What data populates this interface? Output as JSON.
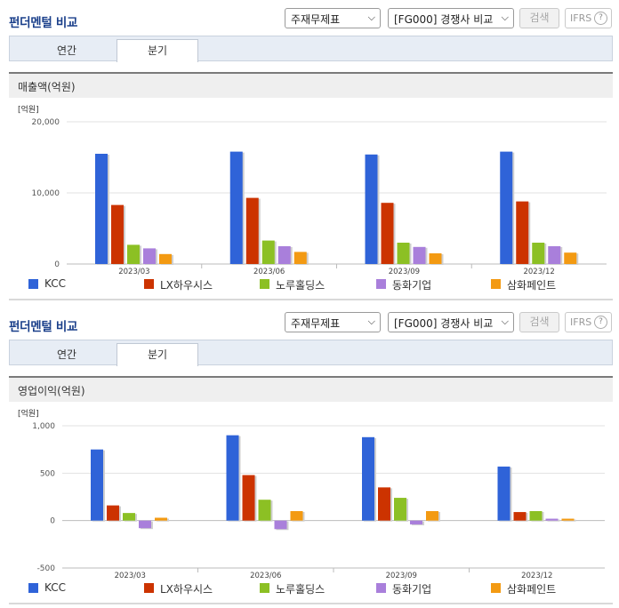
{
  "panels": [
    {
      "title": "펀더멘털 비교",
      "select_a": "주재무제표",
      "select_b": "[FG000] 경쟁사 비교",
      "search_label": "검색",
      "ifrs_label": "IFRS",
      "help_symbol": "?",
      "tabs": [
        "연간",
        "분기"
      ],
      "active_tab": "분기",
      "section_title": "매출액(억원)"
    },
    {
      "title": "펀더멘털 비교",
      "select_a": "주재무제표",
      "select_b": "[FG000] 경쟁사 비교",
      "search_label": "검색",
      "ifrs_label": "IFRS",
      "help_symbol": "?",
      "tabs": [
        "연간",
        "분기"
      ],
      "active_tab": "분기",
      "section_title": "영업이익(억원)"
    }
  ],
  "colors": {
    "KCC": "#2f63d8",
    "LX하우시스": "#cc3300",
    "노루홀딩스": "#8cc024",
    "동화기업": "#a97fdb",
    "삼화페인트": "#f39a12"
  },
  "chart_data": [
    {
      "type": "bar",
      "title": "매출액(억원)",
      "unit_label": "[억원]",
      "categories": [
        "2023/03",
        "2023/06",
        "2023/09",
        "2023/12"
      ],
      "ylim": [
        0,
        20000
      ],
      "yticks": [
        0,
        10000,
        20000
      ],
      "ytick_labels": [
        "0",
        "10,000",
        "20,000"
      ],
      "grid": true,
      "legend": "bottom",
      "series": [
        {
          "name": "KCC",
          "values": [
            15500,
            15800,
            15400,
            15800
          ]
        },
        {
          "name": "LX하우시스",
          "values": [
            8300,
            9300,
            8600,
            8800
          ]
        },
        {
          "name": "노루홀딩스",
          "values": [
            2700,
            3300,
            3000,
            3000
          ]
        },
        {
          "name": "동화기업",
          "values": [
            2200,
            2500,
            2400,
            2500
          ]
        },
        {
          "name": "삼화페인트",
          "values": [
            1400,
            1700,
            1500,
            1600
          ]
        }
      ]
    },
    {
      "type": "bar",
      "title": "영업이익(억원)",
      "unit_label": "[억원]",
      "categories": [
        "2023/03",
        "2023/06",
        "2023/09",
        "2023/12"
      ],
      "ylim": [
        -500,
        1000
      ],
      "yticks": [
        -500,
        0,
        500,
        1000
      ],
      "ytick_labels": [
        "-500",
        "0",
        "500",
        "1,000"
      ],
      "grid": true,
      "legend": "bottom",
      "series": [
        {
          "name": "KCC",
          "values": [
            750,
            900,
            880,
            570
          ]
        },
        {
          "name": "LX하우시스",
          "values": [
            160,
            480,
            350,
            90
          ]
        },
        {
          "name": "노루홀딩스",
          "values": [
            80,
            220,
            240,
            100
          ]
        },
        {
          "name": "동화기업",
          "values": [
            -80,
            -90,
            -40,
            20
          ]
        },
        {
          "name": "삼화페인트",
          "values": [
            30,
            100,
            100,
            20
          ]
        }
      ]
    }
  ]
}
